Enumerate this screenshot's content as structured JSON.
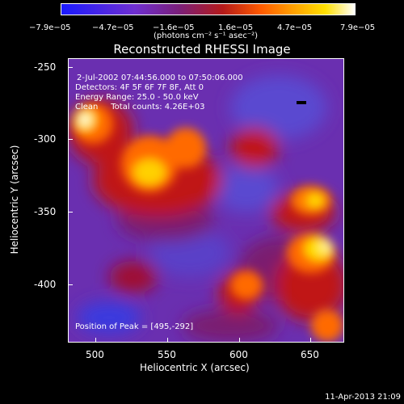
{
  "colorbar": {
    "ticks": [
      "−7.9e−05",
      "−4.7e−05",
      "−1.6e−05",
      "1.6e−05",
      "4.7e−05",
      "7.9e−05"
    ],
    "unit": "(photons cm⁻² s⁻¹ asec⁻²)"
  },
  "title": "Reconstructed RHESSI Image",
  "annotations": [
    "2-Jul-2002 07:44:56.000 to 07:50:06.000",
    "Detectors: 4F 5F 6F 7F 8F, Att 0",
    "Energy Range: 25.0 - 50.0 keV",
    "Clean     Total counts: 4.26E+03"
  ],
  "peak_label": "Position of Peak = [495,-292]",
  "axes": {
    "xlabel": "Heliocentric X (arcsec)",
    "ylabel": "Heliocentric Y (arcsec)",
    "xticks": [
      "500",
      "550",
      "600",
      "650"
    ],
    "yticks": [
      "-250",
      "-300",
      "-350",
      "-400"
    ],
    "xlim": [
      477,
      668
    ],
    "ylim": [
      -437,
      -245
    ]
  },
  "timestamp": "11-Apr-2013 21:09",
  "colors": {
    "blue": "#2020ff",
    "purple": "#7030c0",
    "red": "#c01010",
    "orange": "#ff6a00",
    "yellow": "#ffe000",
    "white": "#ffffff"
  }
}
